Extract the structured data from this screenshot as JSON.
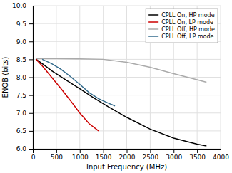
{
  "chart_data": {
    "type": "line",
    "xlabel": "Input Frequency (MHz)",
    "ylabel": "ENOB (bits)",
    "series": [
      {
        "name": "CPLL On, HP mode",
        "color": "#000000",
        "x": [
          70,
          200,
          400,
          700,
          1000,
          1300,
          1600,
          2000,
          2500,
          3000,
          3500,
          3700
        ],
        "values": [
          8.5,
          8.38,
          8.18,
          7.93,
          7.68,
          7.42,
          7.18,
          6.88,
          6.55,
          6.3,
          6.13,
          6.08
        ]
      },
      {
        "name": "CPLL On, LP mode",
        "color": "#cc0000",
        "x": [
          70,
          200,
          400,
          600,
          800,
          1000,
          1200,
          1400
        ],
        "values": [
          8.5,
          8.32,
          8.0,
          7.68,
          7.35,
          7.0,
          6.7,
          6.5
        ]
      },
      {
        "name": "CPLL Off, HP mode",
        "color": "#aaaaaa",
        "x": [
          70,
          500,
          1000,
          1500,
          2000,
          2500,
          3000,
          3500,
          3700
        ],
        "values": [
          8.52,
          8.52,
          8.51,
          8.5,
          8.42,
          8.28,
          8.1,
          7.93,
          7.86
        ]
      },
      {
        "name": "CPLL Off, LP mode",
        "color": "#336b8c",
        "x": [
          200,
          400,
          600,
          800,
          1000,
          1200,
          1400,
          1600,
          1750
        ],
        "values": [
          8.5,
          8.38,
          8.22,
          8.02,
          7.8,
          7.57,
          7.4,
          7.28,
          7.2
        ]
      }
    ],
    "xlim": [
      0,
      4000
    ],
    "ylim": [
      6,
      10
    ],
    "xticks": [
      0,
      500,
      1000,
      1500,
      2000,
      2500,
      3000,
      3500,
      4000
    ],
    "yticks": [
      {
        "value": 6,
        "label": "6.0"
      },
      {
        "value": 6.5,
        "label": "6.5"
      },
      {
        "value": 7,
        "label": "7.0"
      },
      {
        "value": 7.5,
        "label": "7.5"
      },
      {
        "value": 8,
        "label": "8.0"
      },
      {
        "value": 8.5,
        "label": "8.5"
      },
      {
        "value": 9,
        "label": "9.0"
      },
      {
        "value": 9.5,
        "label": "9.5"
      },
      {
        "value": 10,
        "label": "10.0"
      }
    ],
    "grid": true,
    "legend": "upper right"
  }
}
